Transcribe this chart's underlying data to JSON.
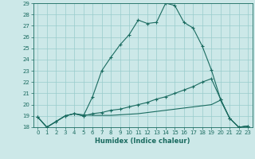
{
  "xlabel": "Humidex (Indice chaleur)",
  "xlim": [
    -0.5,
    23.5
  ],
  "ylim": [
    18,
    29
  ],
  "xticks": [
    0,
    1,
    2,
    3,
    4,
    5,
    6,
    7,
    8,
    9,
    10,
    11,
    12,
    13,
    14,
    15,
    16,
    17,
    18,
    19,
    20,
    21,
    22,
    23
  ],
  "yticks": [
    18,
    19,
    20,
    21,
    22,
    23,
    24,
    25,
    26,
    27,
    28,
    29
  ],
  "bg_color": "#cce8e8",
  "line_color": "#1a6b60",
  "grid_color": "#99cccc",
  "line1_x": [
    0,
    1,
    2,
    3,
    4,
    5,
    6,
    7,
    8,
    9,
    10,
    11,
    12,
    13,
    14,
    15,
    16,
    17,
    18,
    19,
    20,
    21,
    22,
    23
  ],
  "line1_y": [
    18.9,
    18.0,
    18.5,
    19.0,
    19.2,
    19.0,
    20.7,
    23.0,
    24.2,
    25.3,
    26.2,
    27.5,
    27.2,
    27.3,
    29.0,
    28.8,
    27.3,
    26.8,
    25.2,
    23.1,
    20.5,
    18.8,
    18.0,
    18.1
  ],
  "line2_x": [
    0,
    1,
    2,
    3,
    4,
    5,
    6,
    7,
    8,
    9,
    10,
    11,
    12,
    13,
    14,
    15,
    16,
    17,
    18,
    19,
    20,
    21,
    22,
    23
  ],
  "line2_y": [
    18.9,
    18.0,
    18.5,
    19.0,
    19.2,
    19.0,
    19.2,
    19.3,
    19.5,
    19.6,
    19.8,
    20.0,
    20.2,
    20.5,
    20.7,
    21.0,
    21.3,
    21.6,
    22.0,
    22.3,
    20.5,
    18.8,
    18.0,
    18.1
  ],
  "line3_x": [
    0,
    1,
    2,
    3,
    4,
    5,
    6,
    7,
    8,
    9,
    10,
    11,
    12,
    13,
    14,
    15,
    16,
    17,
    18,
    19,
    20,
    21,
    22,
    23
  ],
  "line3_y": [
    18.9,
    18.0,
    18.5,
    19.0,
    19.2,
    19.1,
    19.05,
    19.05,
    19.05,
    19.1,
    19.15,
    19.2,
    19.3,
    19.4,
    19.5,
    19.6,
    19.7,
    19.8,
    19.9,
    20.0,
    20.4,
    18.8,
    18.0,
    18.1
  ],
  "tick_fontsize": 5.0,
  "xlabel_fontsize": 6.0
}
